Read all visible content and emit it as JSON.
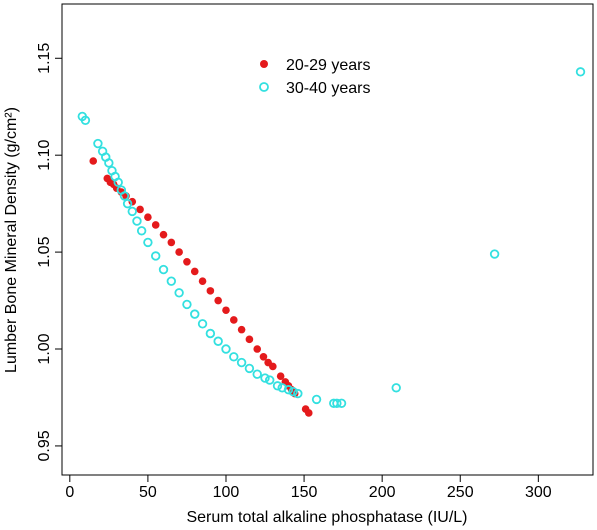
{
  "chart_data": {
    "type": "scatter",
    "xlabel": "Serum total alkaline phosphatase (IU/L)",
    "ylabel": "Lumber Bone Mineral Density (g/cm²)",
    "xlim": [
      -5,
      335
    ],
    "ylim": [
      0.935,
      1.178
    ],
    "x_ticks": [
      0,
      50,
      100,
      150,
      200,
      250,
      300
    ],
    "x_tick_labels": [
      "0",
      "50",
      "100",
      "150",
      "200",
      "250",
      "300"
    ],
    "y_ticks": [
      0.95,
      1.0,
      1.05,
      1.1,
      1.15
    ],
    "y_tick_labels": [
      "0.95",
      "1.00",
      "1.05",
      "1.10",
      "1.15"
    ],
    "grid": false,
    "legend_position": "top-center",
    "series": [
      {
        "name": "20-29 years",
        "color": "#e41a1c",
        "marker": "filled-circle",
        "points": [
          [
            15,
            1.097
          ],
          [
            24,
            1.088
          ],
          [
            26,
            1.086
          ],
          [
            28,
            1.085
          ],
          [
            30,
            1.083
          ],
          [
            33,
            1.081
          ],
          [
            36,
            1.079
          ],
          [
            40,
            1.076
          ],
          [
            45,
            1.072
          ],
          [
            50,
            1.068
          ],
          [
            55,
            1.064
          ],
          [
            60,
            1.059
          ],
          [
            65,
            1.055
          ],
          [
            70,
            1.05
          ],
          [
            75,
            1.045
          ],
          [
            80,
            1.04
          ],
          [
            85,
            1.035
          ],
          [
            90,
            1.03
          ],
          [
            95,
            1.025
          ],
          [
            100,
            1.02
          ],
          [
            105,
            1.015
          ],
          [
            110,
            1.01
          ],
          [
            115,
            1.005
          ],
          [
            120,
            1.0
          ],
          [
            124,
            0.996
          ],
          [
            127,
            0.993
          ],
          [
            130,
            0.991
          ],
          [
            135,
            0.986
          ],
          [
            138,
            0.983
          ],
          [
            140,
            0.981
          ],
          [
            142,
            0.979
          ],
          [
            144,
            0.977
          ],
          [
            151,
            0.969
          ],
          [
            153,
            0.967
          ]
        ]
      },
      {
        "name": "30-40 years",
        "color": "#33e0e0",
        "marker": "open-circle",
        "points": [
          [
            8,
            1.12
          ],
          [
            10,
            1.118
          ],
          [
            18,
            1.106
          ],
          [
            21,
            1.102
          ],
          [
            23,
            1.099
          ],
          [
            25,
            1.096
          ],
          [
            27,
            1.092
          ],
          [
            29,
            1.089
          ],
          [
            31,
            1.086
          ],
          [
            33,
            1.082
          ],
          [
            35,
            1.079
          ],
          [
            37,
            1.075
          ],
          [
            40,
            1.071
          ],
          [
            43,
            1.066
          ],
          [
            46,
            1.061
          ],
          [
            50,
            1.055
          ],
          [
            55,
            1.048
          ],
          [
            60,
            1.041
          ],
          [
            65,
            1.035
          ],
          [
            70,
            1.029
          ],
          [
            75,
            1.023
          ],
          [
            80,
            1.018
          ],
          [
            85,
            1.013
          ],
          [
            90,
            1.008
          ],
          [
            95,
            1.004
          ],
          [
            100,
            1.0
          ],
          [
            105,
            0.996
          ],
          [
            110,
            0.993
          ],
          [
            115,
            0.99
          ],
          [
            120,
            0.987
          ],
          [
            125,
            0.985
          ],
          [
            128,
            0.984
          ],
          [
            133,
            0.981
          ],
          [
            136,
            0.98
          ],
          [
            140,
            0.979
          ],
          [
            143,
            0.978
          ],
          [
            146,
            0.977
          ],
          [
            158,
            0.974
          ],
          [
            169,
            0.972
          ],
          [
            171,
            0.972
          ],
          [
            174,
            0.972
          ],
          [
            209,
            0.98
          ],
          [
            272,
            1.049
          ],
          [
            327,
            1.143
          ]
        ]
      }
    ]
  }
}
